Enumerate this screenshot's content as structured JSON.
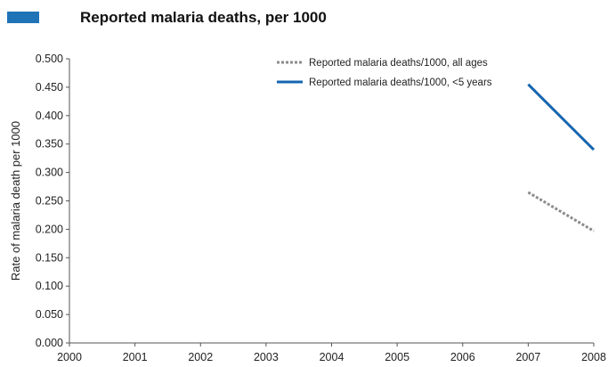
{
  "chart_data": {
    "type": "line",
    "title": "Reported malaria deaths, per 1000",
    "ylabel": "Rate of malaria death per 1000",
    "xlabel": "",
    "x": [
      "2000",
      "2001",
      "2002",
      "2003",
      "2004",
      "2005",
      "2006",
      "2007",
      "2008"
    ],
    "ylim": [
      0,
      0.5
    ],
    "yticks": [
      "0.000",
      "0.050",
      "0.100",
      "0.150",
      "0.200",
      "0.250",
      "0.300",
      "0.350",
      "0.400",
      "0.450",
      "0.500"
    ],
    "grid": false,
    "legend_position": "top-right",
    "series": [
      {
        "name": "Reported malaria deaths/1000, all ages",
        "values": [
          null,
          null,
          null,
          null,
          null,
          null,
          null,
          0.265,
          0.197
        ],
        "color": "#8c8c8c",
        "style": "dotted"
      },
      {
        "name": "Reported malaria deaths/1000, <5 years",
        "values": [
          null,
          null,
          null,
          null,
          null,
          null,
          null,
          0.455,
          0.34
        ],
        "color": "#1565b0",
        "style": "solid"
      }
    ]
  },
  "colors": {
    "accent": "#1f73b7",
    "axis": "#555555"
  }
}
